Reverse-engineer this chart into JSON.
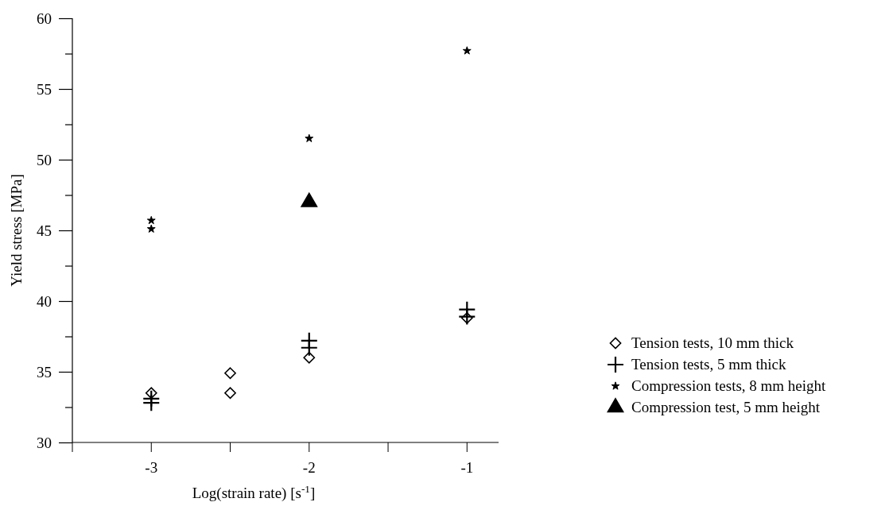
{
  "chart_data": {
    "type": "scatter",
    "xlabel": "Log(strain rate)  [s$^{-1}$]",
    "ylabel": "Yield stress [MPa]",
    "xlim": [
      -3.5,
      -0.8
    ],
    "ylim": [
      30,
      60
    ],
    "xticks": [
      {
        "value": -3.5,
        "label": null
      },
      -3,
      {
        "value": -2.5,
        "label": null
      },
      -2,
      {
        "value": -1.5,
        "label": null
      },
      -1
    ],
    "yticks": [
      30,
      {
        "value": 32.5,
        "label": null
      },
      35,
      {
        "value": 37.5,
        "label": null
      },
      40,
      {
        "value": 42.5,
        "label": null
      },
      45,
      {
        "value": 47.5,
        "label": null
      },
      50,
      {
        "value": 52.5,
        "label": null
      },
      55,
      {
        "value": 57.5,
        "label": null
      },
      60
    ],
    "grid": false,
    "legend": "right",
    "series": [
      {
        "name": "Tension tests, 10 mm thick",
        "color": "#000000",
        "marker": "diamond",
        "x": [
          -3,
          -2.5,
          -2.5,
          -2,
          -1
        ],
        "values": [
          33.5,
          34.9,
          33.5,
          36.0,
          38.8
        ]
      },
      {
        "name": "Tension tests, 5 mm thick",
        "color": "#000000",
        "marker": "cross",
        "x": [
          -3,
          -3,
          -2,
          -2,
          -1,
          -1
        ],
        "values": [
          33.1,
          32.8,
          37.2,
          36.7,
          39.4,
          38.9
        ]
      },
      {
        "name": "Compression tests, 8 mm height",
        "color": "#000000",
        "marker": "star",
        "x": [
          -3,
          -3,
          -2,
          -1
        ],
        "values": [
          45.7,
          45.1,
          51.5,
          57.7
        ]
      },
      {
        "name": "Compression test, 5 mm height",
        "color": "#000000",
        "marker": "triangle",
        "x": [
          -2
        ],
        "values": [
          47.0
        ]
      }
    ]
  }
}
